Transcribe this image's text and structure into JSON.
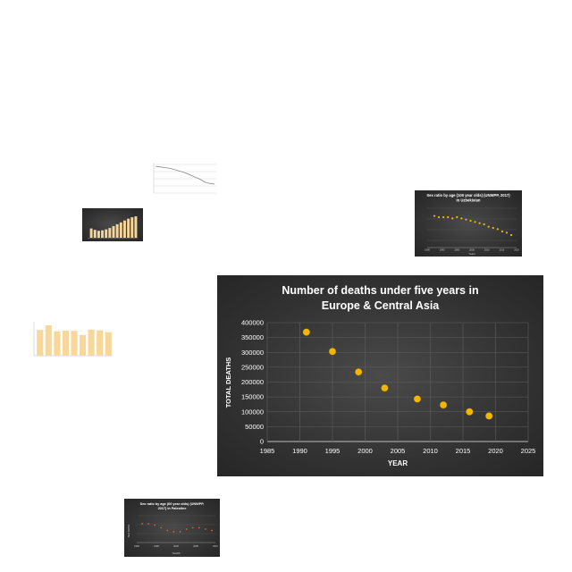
{
  "main_chart": {
    "title_line1": "Number of deaths under five years in",
    "title_line2": "Europe & Central Asia",
    "chart_data": {
      "type": "scatter",
      "title": "Number of deaths under five years in Europe & Central Asia",
      "xlabel": "YEAR",
      "ylabel": "TOTAL DEATHS",
      "xlim": [
        1985,
        2025
      ],
      "ylim": [
        0,
        400000
      ],
      "x_ticks": [
        1985,
        1990,
        1995,
        2000,
        2005,
        2010,
        2015,
        2020,
        2025
      ],
      "y_ticks": [
        0,
        50000,
        100000,
        150000,
        200000,
        250000,
        300000,
        350000,
        400000
      ],
      "grid": true,
      "marker_color": "#f2b705",
      "points": [
        {
          "x": 1991,
          "y": 368000
        },
        {
          "x": 1995,
          "y": 303000
        },
        {
          "x": 1999,
          "y": 234000
        },
        {
          "x": 2003,
          "y": 180000
        },
        {
          "x": 2008,
          "y": 143000
        },
        {
          "x": 2012,
          "y": 123000
        },
        {
          "x": 2016,
          "y": 100000
        },
        {
          "x": 2019,
          "y": 86000
        }
      ]
    }
  },
  "thumb_uzbekistan": {
    "title_line1": "Sex ratio by age (100 year olds) (UNWPP, 2017)",
    "title_line2": "in Uzbekistan",
    "xlabel": "Years",
    "x_ticks": [
      "1990",
      "1995",
      "2000",
      "2005",
      "2010",
      "2015",
      "2020"
    ],
    "values": [
      105,
      104,
      104,
      104,
      103,
      104,
      103,
      102,
      101,
      100,
      99,
      98,
      96,
      95,
      94,
      92,
      91,
      89
    ]
  },
  "thumb_palestine": {
    "title_line1": "Sex ratio by age (60 year olds) (UNWPP,",
    "title_line2": "2017) in Palestine",
    "xlabel": "YEARS",
    "ylabel": "SEX RATIO",
    "x_ticks": [
      "1990",
      "1995",
      "2000",
      "2005",
      "2010"
    ],
    "values": [
      104,
      104,
      103,
      101,
      99,
      98,
      98,
      100,
      101,
      101,
      100,
      99
    ]
  },
  "thumb_line_light": {
    "values": [
      100,
      99,
      98,
      97,
      95,
      93,
      91,
      88,
      85,
      82,
      78,
      76,
      75
    ]
  },
  "thumb_bars_dark": {
    "values": [
      40,
      34,
      30,
      32,
      36,
      42,
      50,
      58,
      66,
      74,
      82,
      88,
      92
    ]
  },
  "thumb_bars_light": {
    "values": [
      72,
      85,
      68,
      70,
      69,
      58,
      73,
      71,
      66
    ]
  }
}
